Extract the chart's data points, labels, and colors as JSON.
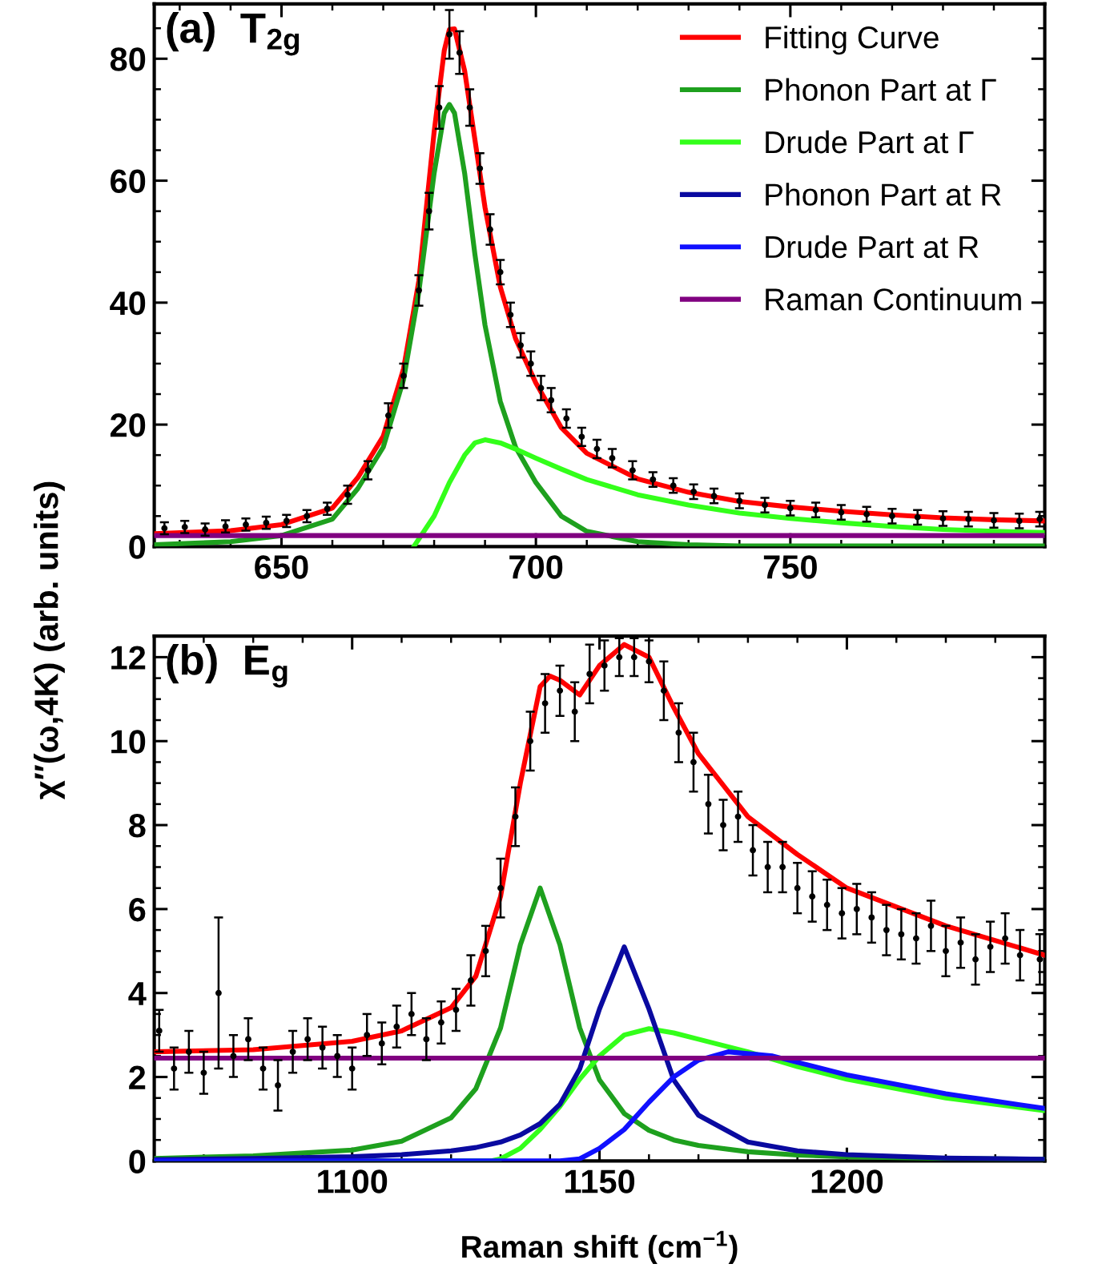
{
  "chart_data": [
    {
      "type": "line",
      "title": "(a)  T$_{2g}$",
      "ylabel": "χ″(ω,4K) (arb. units)",
      "xlim": [
        625,
        800
      ],
      "xticks": [
        650,
        700,
        750
      ],
      "ylim": [
        0,
        89
      ],
      "yticks": [
        0,
        20,
        40,
        60,
        80
      ],
      "grid": false,
      "legend": "top right",
      "marker": "none",
      "line_style": "solid",
      "series": [
        {
          "type": "scatter",
          "color": "#000000",
          "marker": "circle",
          "x": [
            627,
            631,
            635,
            639,
            643,
            647,
            651,
            655,
            659,
            663,
            667,
            671,
            674,
            677,
            679,
            681,
            683,
            685,
            687,
            689,
            691,
            693,
            695,
            697,
            699,
            701,
            703,
            706,
            709,
            712,
            715,
            719,
            723,
            727,
            731,
            735,
            740,
            745,
            750,
            755,
            760,
            765,
            770,
            775,
            780,
            785,
            790,
            795,
            799
          ],
          "values": [
            3.0,
            3.2,
            2.8,
            3.3,
            3.6,
            3.9,
            4.2,
            5.0,
            6.2,
            8.5,
            12.5,
            21.5,
            28,
            42,
            55,
            72,
            84,
            81,
            72,
            62,
            52,
            45,
            38,
            33,
            30,
            26,
            24,
            21,
            18,
            16,
            14.5,
            12.5,
            11,
            10,
            9,
            8.3,
            7.5,
            6.8,
            6.3,
            6.0,
            5.6,
            5.3,
            5.0,
            4.8,
            4.6,
            4.5,
            4.3,
            4.2,
            4.5
          ],
          "errors": [
            1,
            1,
            1,
            1,
            1,
            1,
            1,
            1,
            1,
            1.5,
            1.5,
            2,
            2,
            2.5,
            3,
            3.5,
            4,
            3.5,
            3,
            2.5,
            2.5,
            2,
            2,
            2,
            2,
            2,
            2,
            1.5,
            1.5,
            1.5,
            1.5,
            1.5,
            1.2,
            1.2,
            1.2,
            1.2,
            1.2,
            1.2,
            1.2,
            1.2,
            1.2,
            1.2,
            1.2,
            1.2,
            1.2,
            1.2,
            1.2,
            1.2,
            1.2
          ]
        },
        {
          "name": "Fitting Curve",
          "color": "#ff0000",
          "x": [
            625,
            640,
            650,
            660,
            665,
            670,
            674,
            677,
            680,
            682,
            683,
            684,
            686,
            688,
            690,
            693,
            696,
            700,
            705,
            710,
            720,
            730,
            740,
            750,
            760,
            770,
            780,
            790,
            800
          ],
          "values": [
            2.1,
            2.6,
            3.6,
            6.3,
            11.3,
            18.1,
            29.2,
            43.6,
            68,
            81.4,
            84.8,
            84.9,
            78,
            66.8,
            55.6,
            42.6,
            34.1,
            26.8,
            19.5,
            15.3,
            11.1,
            8.9,
            7.4,
            6.5,
            5.8,
            5.2,
            4.7,
            4.4,
            4.2
          ]
        },
        {
          "name": "Phonon Part at Γ",
          "color": "#1ea01e",
          "x": [
            625,
            640,
            650,
            660,
            665,
            670,
            674,
            677,
            680,
            682,
            683,
            684,
            686,
            688,
            690,
            693,
            696,
            700,
            705,
            710,
            720,
            730,
            740,
            750,
            760,
            770,
            780,
            790,
            800
          ],
          "values": [
            0.3,
            0.8,
            1.8,
            4.5,
            9.5,
            16.3,
            27.4,
            41.8,
            61.2,
            71.1,
            72.5,
            71.1,
            61.2,
            48,
            36.3,
            23.8,
            16.3,
            10.5,
            5,
            2.5,
            0.8,
            0.3,
            0.1,
            0.1,
            0.1,
            0.1,
            0.1,
            0.1,
            0.1
          ]
        },
        {
          "name": "Drude Part at Γ",
          "color": "#33ff1a",
          "x": [
            676,
            680,
            683,
            686,
            688,
            690,
            693,
            696,
            700,
            705,
            710,
            720,
            730,
            740,
            750,
            760,
            770,
            780,
            790,
            800
          ],
          "values": [
            0,
            5,
            10.5,
            15,
            17,
            17.5,
            17,
            16,
            14.5,
            12.7,
            11,
            8.5,
            6.8,
            5.5,
            4.6,
            3.9,
            3.3,
            2.8,
            2.5,
            2.3
          ]
        },
        {
          "name": "Phonon Part at R",
          "color": "#0a0aa0"
        },
        {
          "name": "Drude Part at R",
          "color": "#1010ff"
        },
        {
          "name": "Raman Continuum",
          "color": "#800080",
          "x": [
            625,
            800
          ],
          "values": [
            1.8,
            1.8
          ]
        }
      ]
    },
    {
      "type": "line",
      "title": "(b)  E$_{g}$",
      "xlabel": "Raman shift (cm$^{−1}$)",
      "xlim": [
        1060,
        1240
      ],
      "xticks": [
        1100,
        1150,
        1200
      ],
      "ylim": [
        0,
        12.5
      ],
      "yticks": [
        0,
        2,
        4,
        6,
        8,
        10,
        12
      ],
      "grid": false,
      "marker": "none",
      "line_style": "solid",
      "series": [
        {
          "type": "scatter",
          "color": "#000000",
          "marker": "circle",
          "x": [
            1061,
            1064,
            1067,
            1070,
            1073,
            1076,
            1079,
            1082,
            1085,
            1088,
            1091,
            1094,
            1097,
            1100,
            1103,
            1106,
            1109,
            1112,
            1115,
            1118,
            1121,
            1124,
            1127,
            1130,
            1133,
            1136,
            1139,
            1142,
            1145,
            1148,
            1151,
            1154,
            1157,
            1160,
            1163,
            1166,
            1169,
            1172,
            1175,
            1178,
            1181,
            1184,
            1187,
            1190,
            1193,
            1196,
            1199,
            1202,
            1205,
            1208,
            1211,
            1214,
            1217,
            1220,
            1223,
            1226,
            1229,
            1232,
            1235,
            1239
          ],
          "values": [
            3.1,
            2.2,
            2.6,
            2.1,
            4.0,
            2.5,
            2.9,
            2.2,
            1.8,
            2.6,
            2.9,
            2.7,
            2.5,
            2.2,
            3.0,
            2.8,
            3.2,
            3.5,
            2.9,
            3.3,
            3.6,
            4.3,
            5.0,
            6.5,
            8.2,
            10.0,
            10.9,
            11.2,
            10.7,
            11.6,
            11.8,
            12.0,
            12.0,
            11.9,
            11.2,
            10.2,
            9.5,
            8.5,
            8.0,
            8.2,
            7.4,
            7.0,
            7.0,
            6.5,
            6.3,
            6.1,
            5.9,
            6.0,
            5.8,
            5.5,
            5.4,
            5.3,
            5.6,
            5.0,
            5.2,
            4.8,
            5.1,
            5.3,
            4.9,
            4.8
          ],
          "errors": [
            0.5,
            0.5,
            0.5,
            0.5,
            1.8,
            0.5,
            0.5,
            0.5,
            0.6,
            0.5,
            0.5,
            0.5,
            0.5,
            0.5,
            0.5,
            0.5,
            0.5,
            0.5,
            0.5,
            0.5,
            0.5,
            0.6,
            0.6,
            0.7,
            0.7,
            0.7,
            0.7,
            0.6,
            0.7,
            0.7,
            0.6,
            0.45,
            0.45,
            0.5,
            0.7,
            0.7,
            0.7,
            0.7,
            0.6,
            0.6,
            0.6,
            0.6,
            0.6,
            0.6,
            0.6,
            0.6,
            0.6,
            0.6,
            0.6,
            0.6,
            0.6,
            0.6,
            0.6,
            0.6,
            0.6,
            0.6,
            0.6,
            0.6,
            0.6,
            0.6
          ]
        },
        {
          "color": "#ff0000",
          "x": [
            1060,
            1080,
            1100,
            1110,
            1120,
            1125,
            1130,
            1134,
            1138,
            1140,
            1142,
            1146,
            1150,
            1155,
            1160,
            1165,
            1170,
            1180,
            1190,
            1200,
            1220,
            1240
          ],
          "values": [
            2.6,
            2.65,
            2.85,
            3.1,
            3.65,
            4.4,
            6.3,
            9.0,
            11.3,
            11.55,
            11.45,
            11.1,
            11.8,
            12.3,
            12.0,
            10.8,
            9.7,
            8.2,
            7.3,
            6.5,
            5.6,
            4.9
          ]
        },
        {
          "color": "#1ea01e",
          "x": [
            1060,
            1080,
            1100,
            1110,
            1120,
            1125,
            1130,
            1134,
            1138,
            1142,
            1146,
            1150,
            1155,
            1160,
            1165,
            1170,
            1180,
            1190,
            1200,
            1220,
            1240
          ],
          "values": [
            0.06,
            0.12,
            0.26,
            0.47,
            1.03,
            1.72,
            3.17,
            5.15,
            6.5,
            5.15,
            3.17,
            1.93,
            1.13,
            0.73,
            0.5,
            0.37,
            0.22,
            0.14,
            0.1,
            0.06,
            0.04
          ]
        },
        {
          "color": "#33ff1a",
          "x": [
            1060,
            1128,
            1130,
            1134,
            1138,
            1142,
            1146,
            1150,
            1155,
            1160,
            1165,
            1170,
            1180,
            1190,
            1200,
            1220,
            1240
          ],
          "values": [
            0,
            0,
            0.05,
            0.3,
            0.75,
            1.3,
            1.95,
            2.5,
            3.0,
            3.15,
            3.05,
            2.9,
            2.6,
            2.25,
            1.95,
            1.5,
            1.2
          ]
        },
        {
          "color": "#0a0aa0",
          "x": [
            1060,
            1080,
            1100,
            1110,
            1120,
            1125,
            1130,
            1134,
            1138,
            1142,
            1146,
            1150,
            1155,
            1160,
            1165,
            1170,
            1180,
            1190,
            1200,
            1220,
            1240
          ],
          "values": [
            0.03,
            0.06,
            0.1,
            0.15,
            0.24,
            0.32,
            0.45,
            0.62,
            0.89,
            1.35,
            2.19,
            3.62,
            5.1,
            3.62,
            1.93,
            1.09,
            0.45,
            0.24,
            0.15,
            0.07,
            0.04
          ]
        },
        {
          "color": "#1010ff",
          "x": [
            1060,
            1142,
            1146,
            1150,
            1155,
            1160,
            1165,
            1170,
            1176,
            1185,
            1200,
            1220,
            1240
          ],
          "values": [
            0,
            0,
            0.05,
            0.3,
            0.75,
            1.4,
            2.0,
            2.4,
            2.6,
            2.5,
            2.05,
            1.6,
            1.25
          ]
        },
        {
          "color": "#800080",
          "x": [
            1060,
            1240
          ],
          "values": [
            2.45,
            2.45
          ]
        }
      ]
    }
  ]
}
